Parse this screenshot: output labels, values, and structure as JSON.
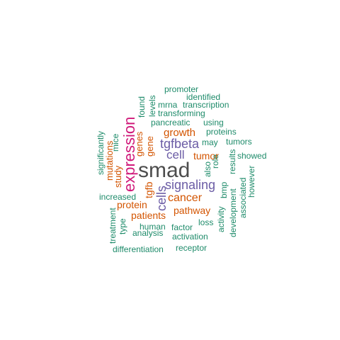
{
  "palette": {
    "gray": "#4d4d4d",
    "pink": "#d0197a",
    "purple": "#6b5ca5",
    "orange": "#d35400",
    "green": "#1e8b6a"
  },
  "words": [
    {
      "text": "smad",
      "color": "gray"
    },
    {
      "text": "expression",
      "color": "pink"
    },
    {
      "text": "signaling",
      "color": "purple"
    },
    {
      "text": "cells",
      "color": "purple"
    },
    {
      "text": "tgfbeta",
      "color": "purple"
    },
    {
      "text": "cell",
      "color": "purple"
    },
    {
      "text": "cancer",
      "color": "orange"
    },
    {
      "text": "growth",
      "color": "orange"
    },
    {
      "text": "tgfb",
      "color": "orange"
    },
    {
      "text": "pathway",
      "color": "orange"
    },
    {
      "text": "patients",
      "color": "orange"
    },
    {
      "text": "protein",
      "color": "orange"
    },
    {
      "text": "tumor",
      "color": "orange"
    },
    {
      "text": "genes",
      "color": "orange"
    },
    {
      "text": "gene",
      "color": "orange"
    },
    {
      "text": "mutations",
      "color": "orange"
    },
    {
      "text": "study",
      "color": "orange"
    },
    {
      "text": "promoter",
      "color": "green"
    },
    {
      "text": "identified",
      "color": "green"
    },
    {
      "text": "mrna",
      "color": "green"
    },
    {
      "text": "transcription",
      "color": "green"
    },
    {
      "text": "transforming",
      "color": "green"
    },
    {
      "text": "pancreatic",
      "color": "green"
    },
    {
      "text": "using",
      "color": "green"
    },
    {
      "text": "proteins",
      "color": "green"
    },
    {
      "text": "tumors",
      "color": "green"
    },
    {
      "text": "may",
      "color": "green"
    },
    {
      "text": "showed",
      "color": "green"
    },
    {
      "text": "results",
      "color": "green"
    },
    {
      "text": "role",
      "color": "green"
    },
    {
      "text": "also",
      "color": "green"
    },
    {
      "text": "found",
      "color": "green"
    },
    {
      "text": "levels",
      "color": "green"
    },
    {
      "text": "mice",
      "color": "green"
    },
    {
      "text": "significantly",
      "color": "green"
    },
    {
      "text": "increased",
      "color": "green"
    },
    {
      "text": "bmp",
      "color": "green"
    },
    {
      "text": "however",
      "color": "green"
    },
    {
      "text": "associated",
      "color": "green"
    },
    {
      "text": "development",
      "color": "green"
    },
    {
      "text": "activity",
      "color": "green"
    },
    {
      "text": "human",
      "color": "green"
    },
    {
      "text": "factor",
      "color": "green"
    },
    {
      "text": "loss",
      "color": "green"
    },
    {
      "text": "type",
      "color": "green"
    },
    {
      "text": "treatment",
      "color": "green"
    },
    {
      "text": "analysis",
      "color": "green"
    },
    {
      "text": "activation",
      "color": "green"
    },
    {
      "text": "differentiation",
      "color": "green"
    },
    {
      "text": "receptor",
      "color": "green"
    }
  ]
}
